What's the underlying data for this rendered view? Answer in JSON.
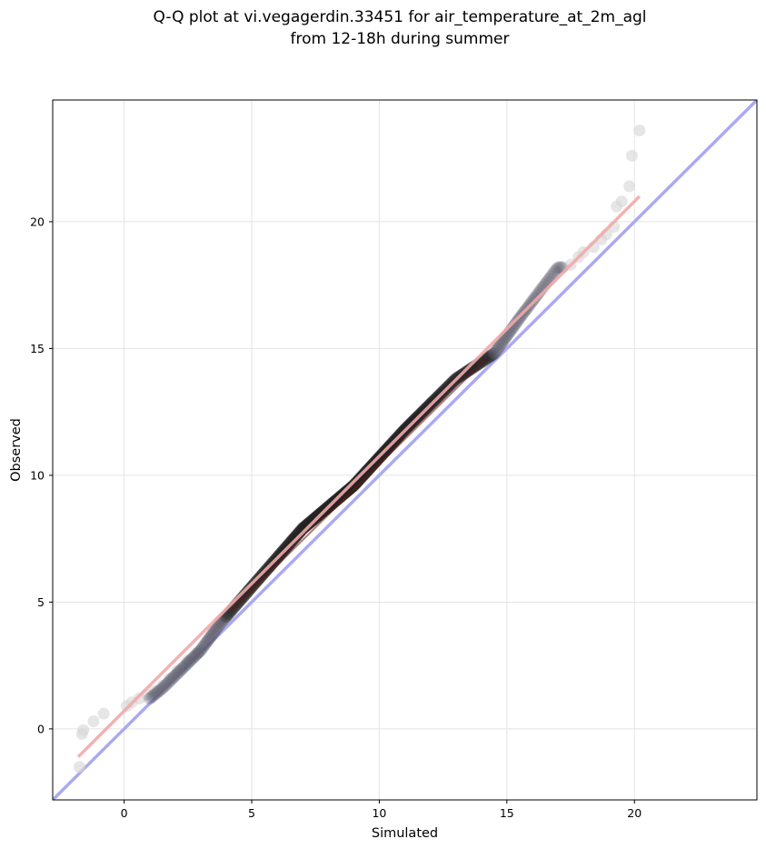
{
  "chart_data": {
    "type": "scatter",
    "title": [
      "Q-Q plot at vi.vegagerdin.33451 for air_temperature_at_2m_agl",
      "from 12-18h during summer"
    ],
    "xlabel": "Simulated",
    "ylabel": "Observed",
    "xlim": [
      -2.8,
      24.8
    ],
    "ylim": [
      -2.8,
      24.8
    ],
    "xticks": [
      0,
      5,
      10,
      15,
      20
    ],
    "yticks": [
      0,
      5,
      10,
      15,
      20
    ],
    "grid": true,
    "colors": {
      "identity_line": "#aaaaf2",
      "fit_line": "#f2a8a8",
      "points_dense": "#222222",
      "points_sparse": "#d6d6d6",
      "dense_core": "#7a1010"
    },
    "identity_line": {
      "x": [
        -2.8,
        24.8
      ],
      "y": [
        -2.8,
        24.8
      ]
    },
    "fit_line": {
      "x": [
        -1.8,
        20.2
      ],
      "y": [
        -1.1,
        21.0
      ]
    },
    "quantile_curve": {
      "x": [
        -1.8,
        1.5,
        3.0,
        3.8,
        5.0,
        7.0,
        9.0,
        11.0,
        13.0,
        14.5,
        15.5,
        17.0
      ],
      "y": [
        -1.1,
        1.6,
        3.1,
        4.2,
        5.6,
        7.9,
        9.6,
        11.8,
        13.8,
        14.8,
        16.2,
        18.2
      ]
    },
    "sparse_points": {
      "x": [
        -1.75,
        -1.65,
        -1.6,
        -1.2,
        -0.8,
        0.1,
        0.3,
        0.6,
        0.9,
        1.2,
        1.5,
        1.8,
        2.1,
        2.5,
        2.9,
        17.2,
        17.5,
        17.8,
        18.0,
        18.4,
        18.7,
        18.9,
        19.2,
        19.3,
        19.5,
        19.8,
        19.9,
        20.2
      ],
      "y": [
        -1.5,
        -0.2,
        -0.05,
        0.3,
        0.6,
        0.9,
        1.05,
        1.2,
        1.35,
        1.5,
        1.7,
        2.0,
        2.3,
        2.7,
        3.0,
        18.2,
        18.3,
        18.6,
        18.8,
        19.0,
        19.3,
        19.5,
        19.8,
        20.6,
        20.8,
        21.4,
        22.6,
        23.6
      ]
    }
  }
}
